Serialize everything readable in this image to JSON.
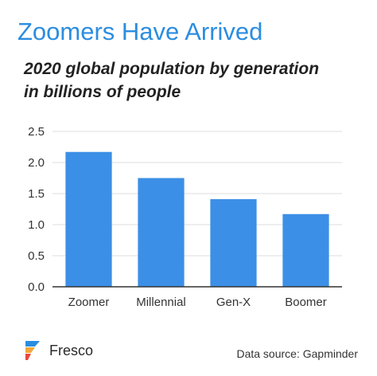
{
  "header": {
    "title": "Zoomers Have Arrived",
    "subtitle_line1": "2020 global population by generation",
    "subtitle_line2": "in billions of people"
  },
  "footer": {
    "brand": "Fresco",
    "source": "Data source: Gapminder"
  },
  "colors": {
    "title": "#2b8de0",
    "bar": "#3c8fe6",
    "gridline": "#dddddd",
    "axis": "#333333"
  },
  "chart_data": {
    "type": "bar",
    "title": "Zoomers Have Arrived",
    "subtitle": "2020 global population by generation in billions of people",
    "categories": [
      "Zoomer",
      "Millennial",
      "Gen-X",
      "Boomer"
    ],
    "values": [
      2.17,
      1.75,
      1.41,
      1.17
    ],
    "ylim": [
      0,
      2.5
    ],
    "yticks": [
      "0.0",
      "0.5",
      "1.0",
      "1.5",
      "2.0",
      "2.5"
    ],
    "grid": true,
    "legend": "none"
  }
}
